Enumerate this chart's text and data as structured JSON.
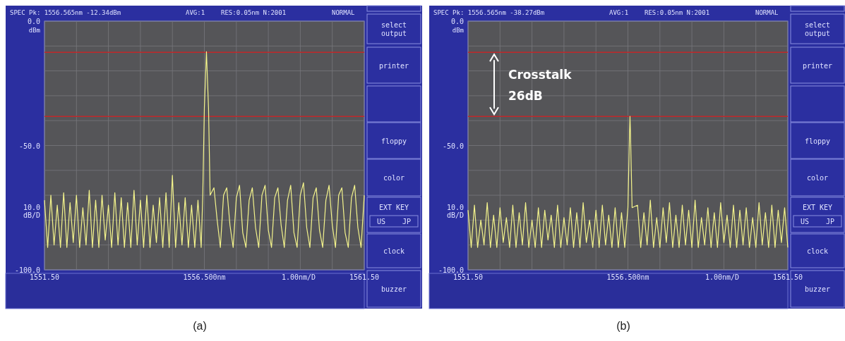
{
  "chart_data": [
    {
      "type": "line",
      "title": "(a)",
      "ylabel": "10.0 dB/D",
      "xlabel": "1.00nm/D",
      "xlim": [
        1551.5,
        1561.5
      ],
      "ylim": [
        -100,
        0
      ],
      "xticks": [
        {
          "value": 1551.5,
          "label": "1551.50"
        },
        {
          "value": 1552.5,
          "label": null
        },
        {
          "value": 1553.5,
          "label": null
        },
        {
          "value": 1554.5,
          "label": null
        },
        {
          "value": 1555.5,
          "label": null
        },
        {
          "value": 1556.5,
          "label": "1556.500nm"
        },
        {
          "value": 1557.5,
          "label": null
        },
        {
          "value": 1558.5,
          "label": null
        },
        {
          "value": 1559.5,
          "label": null
        },
        {
          "value": 1560.5,
          "label": null
        },
        {
          "value": 1561.5,
          "label": "1561.50"
        }
      ],
      "yticks": [
        {
          "value": 0,
          "label": "0.0"
        },
        {
          "value": -10,
          "label": null
        },
        {
          "value": -20,
          "label": null
        },
        {
          "value": -30,
          "label": null
        },
        {
          "value": -40,
          "label": null
        },
        {
          "value": -50,
          "label": "-50.0"
        },
        {
          "value": -60,
          "label": null
        },
        {
          "value": -70,
          "label": null
        },
        {
          "value": -80,
          "label": null
        },
        {
          "value": -90,
          "label": null
        },
        {
          "value": -100,
          "label": "-100.0"
        }
      ],
      "grid": true,
      "ref_lines": [
        {
          "axis": "y",
          "value": -12.5,
          "color": "#c0282a"
        },
        {
          "axis": "y",
          "value": -38.3,
          "color": "#c0282a"
        }
      ],
      "annotations": [
        "SPEC Pk: 1556.565nm -12.34dBm",
        "AVG:1",
        "RES:0.05nm N:2001",
        "NORMAL",
        "dBm",
        null,
        "select output",
        "printer",
        "floppy",
        "color",
        "EXT KEY",
        "US",
        "JP",
        "clock",
        "buzzer"
      ],
      "series": [
        {
          "color": "#f4f48c",
          "x": [
            1551.5,
            1551.6,
            1551.7,
            1551.8,
            1551.9,
            1552.0,
            1552.1,
            1552.2,
            1552.3,
            1552.4,
            1552.5,
            1552.6,
            1552.7,
            1552.8,
            1552.9,
            1553.0,
            1553.1,
            1553.2,
            1553.3,
            1553.4,
            1553.5,
            1553.6,
            1553.7,
            1553.8,
            1553.9,
            1554.0,
            1554.1,
            1554.2,
            1554.3,
            1554.4,
            1554.5,
            1554.6,
            1554.7,
            1554.8,
            1554.9,
            1555.0,
            1555.1,
            1555.2,
            1555.3,
            1555.4,
            1555.5,
            1555.6,
            1555.7,
            1555.8,
            1555.9,
            1556.0,
            1556.1,
            1556.2,
            1556.3,
            1556.4,
            1556.45,
            1556.5,
            1556.565,
            1556.63,
            1556.68,
            1556.8,
            1556.9,
            1557.0,
            1557.1,
            1557.2,
            1557.3,
            1557.4,
            1557.5,
            1557.6,
            1557.7,
            1557.8,
            1557.9,
            1558.0,
            1558.1,
            1558.2,
            1558.3,
            1558.4,
            1558.5,
            1558.6,
            1558.7,
            1558.8,
            1558.9,
            1559.0,
            1559.1,
            1559.2,
            1559.3,
            1559.4,
            1559.5,
            1559.6,
            1559.7,
            1559.8,
            1559.9,
            1560.0,
            1560.1,
            1560.2,
            1560.3,
            1560.4,
            1560.5,
            1560.6,
            1560.7,
            1560.8,
            1560.9,
            1561.0,
            1561.1,
            1561.2,
            1561.3,
            1561.4,
            1561.5
          ],
          "values": [
            -72,
            -91,
            -70,
            -90,
            -74,
            -91,
            -69,
            -91,
            -73,
            -89,
            -70,
            -91,
            -75,
            -90,
            -68,
            -91,
            -72,
            -91,
            -70,
            -88,
            -74,
            -91,
            -69,
            -90,
            -71,
            -91,
            -73,
            -91,
            -68,
            -90,
            -72,
            -91,
            -70,
            -91,
            -74,
            -89,
            -71,
            -91,
            -69,
            -91,
            -62,
            -91,
            -73,
            -90,
            -71,
            -91,
            -74,
            -91,
            -72,
            -91,
            -70,
            -35,
            -12.3,
            -35,
            -70,
            -67,
            -80,
            -91,
            -70,
            -67,
            -82,
            -91,
            -71,
            -66,
            -85,
            -91,
            -72,
            -67,
            -83,
            -91,
            -70,
            -66,
            -84,
            -91,
            -71,
            -67,
            -82,
            -91,
            -72,
            -66,
            -85,
            -91,
            -70,
            -65,
            -83,
            -91,
            -71,
            -67,
            -84,
            -91,
            -72,
            -66,
            -82,
            -91,
            -70,
            -67,
            -85,
            -91,
            -71,
            -66,
            -83,
            -91,
            -70
          ]
        }
      ]
    },
    {
      "type": "line",
      "title": "(b)",
      "ylabel": "10.0 dB/D",
      "xlabel": "1.00nm/D",
      "xlim": [
        1551.5,
        1561.5
      ],
      "ylim": [
        -100,
        0
      ],
      "xticks": [
        {
          "value": 1551.5,
          "label": "1551.50"
        },
        {
          "value": 1552.5,
          "label": null
        },
        {
          "value": 1553.5,
          "label": null
        },
        {
          "value": 1554.5,
          "label": null
        },
        {
          "value": 1555.5,
          "label": null
        },
        {
          "value": 1556.5,
          "label": "1556.500nm"
        },
        {
          "value": 1557.5,
          "label": null
        },
        {
          "value": 1558.5,
          "label": null
        },
        {
          "value": 1559.5,
          "label": null
        },
        {
          "value": 1560.5,
          "label": null
        },
        {
          "value": 1561.5,
          "label": "1561.50"
        }
      ],
      "yticks": [
        {
          "value": 0,
          "label": "0.0"
        },
        {
          "value": -10,
          "label": null
        },
        {
          "value": -20,
          "label": null
        },
        {
          "value": -30,
          "label": null
        },
        {
          "value": -40,
          "label": null
        },
        {
          "value": -50,
          "label": "-50.0"
        },
        {
          "value": -60,
          "label": null
        },
        {
          "value": -70,
          "label": null
        },
        {
          "value": -80,
          "label": null
        },
        {
          "value": -90,
          "label": null
        },
        {
          "value": -100,
          "label": "-100.0"
        }
      ],
      "grid": true,
      "ref_lines": [
        {
          "axis": "y",
          "value": -12.5,
          "color": "#c0282a"
        },
        {
          "axis": "y",
          "value": -38.3,
          "color": "#c0282a"
        }
      ],
      "annotations": [
        "SPEC Pk: 1556.565nm -38.27dBm",
        "AVG:1",
        "RES:0.05nm N:2001",
        "NORMAL",
        "dBm",
        null,
        "select output",
        "printer",
        "floppy",
        "color",
        "EXT KEY",
        "US",
        "JP",
        "clock",
        "buzzer",
        "Crosstalk 26dB"
      ],
      "series": [
        {
          "color": "#f4f48c",
          "x": [
            1551.5,
            1551.6,
            1551.7,
            1551.8,
            1551.9,
            1552.0,
            1552.1,
            1552.2,
            1552.3,
            1552.4,
            1552.5,
            1552.6,
            1552.7,
            1552.8,
            1552.9,
            1553.0,
            1553.1,
            1553.2,
            1553.3,
            1553.4,
            1553.5,
            1553.6,
            1553.7,
            1553.8,
            1553.9,
            1554.0,
            1554.1,
            1554.2,
            1554.3,
            1554.4,
            1554.5,
            1554.6,
            1554.7,
            1554.8,
            1554.9,
            1555.0,
            1555.1,
            1555.2,
            1555.3,
            1555.4,
            1555.5,
            1555.6,
            1555.7,
            1555.8,
            1555.9,
            1556.0,
            1556.1,
            1556.2,
            1556.3,
            1556.4,
            1556.5,
            1556.55,
            1556.565,
            1556.58,
            1556.63,
            1556.8,
            1556.9,
            1557.0,
            1557.1,
            1557.2,
            1557.3,
            1557.4,
            1557.5,
            1557.6,
            1557.7,
            1557.8,
            1557.9,
            1558.0,
            1558.1,
            1558.2,
            1558.3,
            1558.4,
            1558.5,
            1558.6,
            1558.7,
            1558.8,
            1558.9,
            1559.0,
            1559.1,
            1559.2,
            1559.3,
            1559.4,
            1559.5,
            1559.6,
            1559.7,
            1559.8,
            1559.9,
            1560.0,
            1560.1,
            1560.2,
            1560.3,
            1560.4,
            1560.5,
            1560.6,
            1560.7,
            1560.8,
            1560.9,
            1561.0,
            1561.1,
            1561.2,
            1561.3,
            1561.4,
            1561.5
          ],
          "values": [
            -76,
            -91,
            -74,
            -91,
            -80,
            -90,
            -73,
            -91,
            -78,
            -91,
            -75,
            -89,
            -79,
            -91,
            -74,
            -91,
            -77,
            -90,
            -73,
            -91,
            -80,
            -91,
            -75,
            -91,
            -76,
            -88,
            -78,
            -91,
            -74,
            -91,
            -79,
            -90,
            -75,
            -91,
            -77,
            -91,
            -73,
            -89,
            -80,
            -91,
            -76,
            -91,
            -74,
            -90,
            -78,
            -91,
            -75,
            -91,
            -77,
            -91,
            -75,
            -45,
            -38.3,
            -45,
            -75,
            -74,
            -91,
            -77,
            -90,
            -72,
            -91,
            -79,
            -91,
            -75,
            -89,
            -73,
            -91,
            -78,
            -91,
            -74,
            -90,
            -76,
            -91,
            -72,
            -91,
            -79,
            -90,
            -75,
            -91,
            -77,
            -91,
            -73,
            -89,
            -78,
            -91,
            -74,
            -91,
            -76,
            -90,
            -75,
            -91,
            -79,
            -91,
            -73,
            -90,
            -77,
            -91,
            -74,
            -91,
            -76,
            -89,
            -75,
            -91
          ]
        }
      ]
    }
  ]
}
